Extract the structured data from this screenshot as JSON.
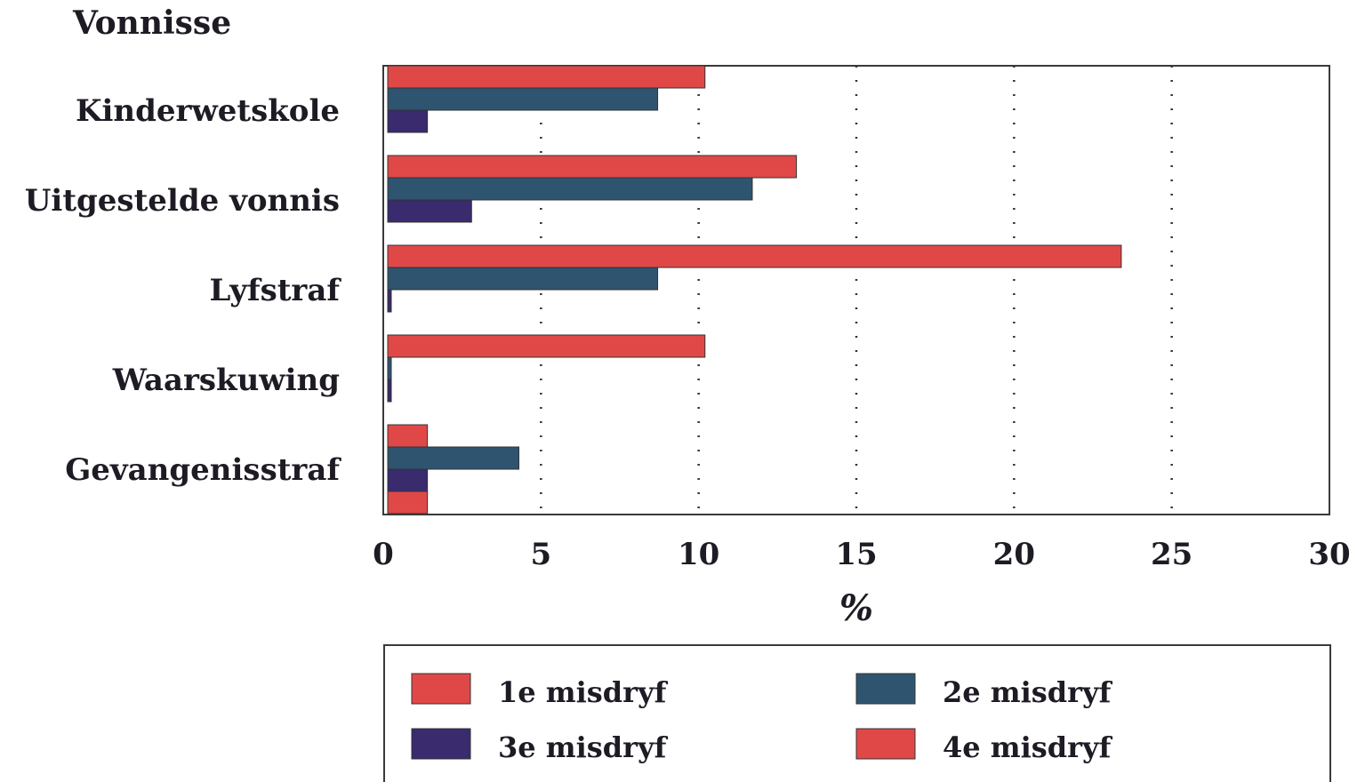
{
  "chart_data": {
    "type": "bar",
    "orientation": "horizontal",
    "title": "Vonnisse",
    "xlabel": "%",
    "ylabel": "",
    "xlim": [
      0,
      30
    ],
    "xticks": [
      "0",
      "5",
      "10",
      "15",
      "20",
      "25",
      "30"
    ],
    "grid": "vertical dotted",
    "legend_position": "bottom",
    "categories": [
      "Kinderwetskole",
      "Uitgestelde vonnis",
      "Lyfstraf",
      "Waarskuwing",
      "Gevangenisstraf"
    ],
    "series": [
      {
        "name": "1e misdryf",
        "color": "#e04848",
        "values": [
          10.2,
          13.1,
          23.4,
          10.2,
          1.4
        ]
      },
      {
        "name": "2e misdryf",
        "color": "#2e5470",
        "values": [
          8.7,
          11.7,
          8.7,
          0.2,
          4.3
        ]
      },
      {
        "name": "3e misdryf",
        "color": "#3a2a6e",
        "values": [
          1.4,
          2.8,
          0.2,
          0.2,
          1.4
        ]
      },
      {
        "name": "4e misdryf",
        "color": "#e04848",
        "values": [
          0,
          0,
          0,
          0,
          1.4
        ]
      }
    ]
  }
}
